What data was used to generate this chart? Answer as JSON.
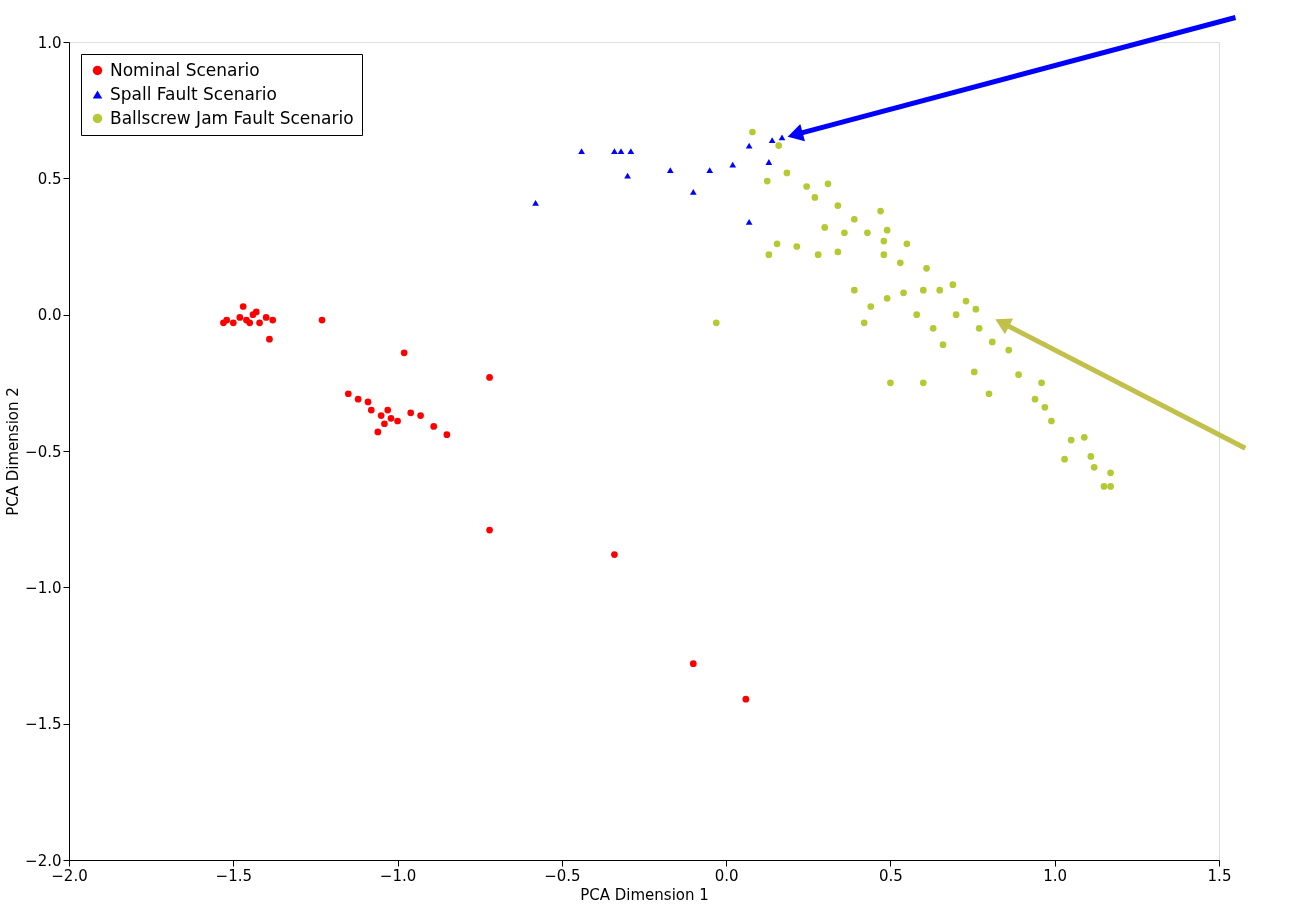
{
  "chart_data": {
    "type": "scatter",
    "xlabel": "PCA Dimension 1",
    "ylabel": "PCA Dimension 2",
    "xlim": [
      -2.0,
      1.5
    ],
    "ylim": [
      -2.0,
      1.0
    ],
    "xticks": [
      {
        "value": -2.0,
        "label": "−2.0"
      },
      {
        "value": -1.5,
        "label": "−1.5"
      },
      {
        "value": -1.0,
        "label": "−1.0"
      },
      {
        "value": -0.5,
        "label": "−0.5"
      },
      {
        "value": 0.0,
        "label": "0.0"
      },
      {
        "value": 0.5,
        "label": "0.5"
      },
      {
        "value": 1.0,
        "label": "1.0"
      },
      {
        "value": 1.5,
        "label": "1.5"
      }
    ],
    "yticks": [
      {
        "value": -2.0,
        "label": "−2.0"
      },
      {
        "value": -1.5,
        "label": "−1.5"
      },
      {
        "value": -1.0,
        "label": "−1.0"
      },
      {
        "value": -0.5,
        "label": "−0.5"
      },
      {
        "value": 0.0,
        "label": "0.0"
      },
      {
        "value": 0.5,
        "label": "0.5"
      },
      {
        "value": 1.0,
        "label": "1.0"
      }
    ],
    "grid": false,
    "legend": "top left",
    "series": [
      {
        "name": "Nominal Scenario",
        "color": "#ff0000",
        "marker": "circle",
        "x": [
          -1.53,
          -1.52,
          -1.5,
          -1.48,
          -1.47,
          -1.46,
          -1.45,
          -1.44,
          -1.43,
          -1.42,
          -1.4,
          -1.38,
          -1.39,
          -1.23,
          -0.98,
          -0.72,
          -1.15,
          -1.12,
          -1.09,
          -1.08,
          -1.05,
          -1.04,
          -1.06,
          -1.03,
          -1.02,
          -1.0,
          -0.96,
          -0.93,
          -0.89,
          -0.85,
          -0.72,
          -0.34,
          -0.1,
          0.06
        ],
        "values": [
          -0.03,
          -0.02,
          -0.03,
          -0.01,
          0.03,
          -0.02,
          -0.03,
          0.0,
          0.01,
          -0.03,
          -0.01,
          -0.02,
          -0.09,
          -0.02,
          -0.14,
          -0.23,
          -0.29,
          -0.31,
          -0.32,
          -0.35,
          -0.37,
          -0.4,
          -0.43,
          -0.35,
          -0.38,
          -0.39,
          -0.36,
          -0.37,
          -0.41,
          -0.44,
          -0.79,
          -0.88,
          -1.28,
          -1.41
        ]
      },
      {
        "name": "Spall Fault Scenario",
        "color": "#0000ff",
        "marker": "triangle",
        "x": [
          -0.58,
          -0.44,
          -0.34,
          -0.32,
          -0.29,
          -0.3,
          -0.17,
          -0.1,
          -0.05,
          0.02,
          0.07,
          0.07,
          0.13,
          0.14,
          0.17
        ],
        "values": [
          0.41,
          0.6,
          0.6,
          0.6,
          0.6,
          0.51,
          0.53,
          0.45,
          0.53,
          0.55,
          0.62,
          0.34,
          0.56,
          0.64,
          0.65
        ]
      },
      {
        "name": "Ballscrew Jam Fault Scenario",
        "color": "#b5c932",
        "marker": "circle",
        "x": [
          0.08,
          0.16,
          0.125,
          -0.03,
          0.185,
          0.245,
          0.27,
          0.31,
          0.34,
          0.39,
          0.47,
          0.3,
          0.36,
          0.43,
          0.49,
          0.48,
          0.55,
          0.155,
          0.215,
          0.13,
          0.28,
          0.34,
          0.48,
          0.53,
          0.61,
          0.39,
          0.44,
          0.42,
          0.49,
          0.54,
          0.6,
          0.65,
          0.69,
          0.73,
          0.76,
          0.58,
          0.63,
          0.66,
          0.7,
          0.77,
          0.81,
          0.86,
          0.755,
          0.89,
          0.96,
          0.8,
          0.5,
          0.6,
          0.94,
          0.97,
          0.99,
          1.05,
          1.09,
          1.11,
          1.12,
          1.17,
          1.17,
          1.15,
          1.03
        ],
        "values": [
          0.67,
          0.62,
          0.49,
          -0.03,
          0.52,
          0.47,
          0.43,
          0.48,
          0.4,
          0.35,
          0.38,
          0.32,
          0.3,
          0.3,
          0.31,
          0.27,
          0.26,
          0.26,
          0.25,
          0.22,
          0.22,
          0.23,
          0.22,
          0.19,
          0.17,
          0.09,
          0.03,
          -0.03,
          0.06,
          0.08,
          0.09,
          0.09,
          0.11,
          0.05,
          0.02,
          0.0,
          -0.05,
          -0.11,
          0.0,
          -0.05,
          -0.1,
          -0.13,
          -0.21,
          -0.22,
          -0.25,
          -0.29,
          -0.25,
          -0.25,
          -0.31,
          -0.34,
          -0.39,
          -0.46,
          -0.45,
          -0.52,
          -0.56,
          -0.58,
          -0.63,
          -0.63,
          -0.53
        ]
      }
    ]
  }
}
